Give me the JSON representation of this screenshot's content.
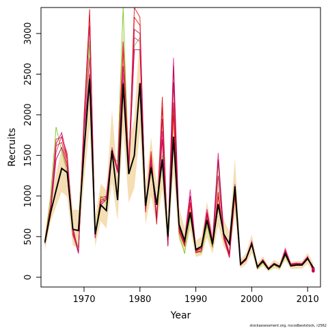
{
  "chart_data": {
    "type": "line",
    "xlabel": "Year",
    "ylabel": "Recruits",
    "credit": "stockassessment.org, nscodbeststock, r2562",
    "xlim": [
      1962.3,
      2012.3
    ],
    "ylim": [
      -120,
      3320
    ],
    "x_ticks": [
      1970,
      1980,
      1990,
      2000,
      2010
    ],
    "y_ticks": [
      0,
      500,
      1000,
      1500,
      2000,
      2500,
      3000
    ],
    "band_color": "#f5deb3",
    "estimate_color": "#000000",
    "years": [
      1963,
      1964,
      1965,
      1966,
      1967,
      1968,
      1969,
      1970,
      1971,
      1972,
      1973,
      1974,
      1975,
      1976,
      1977,
      1978,
      1979,
      1980,
      1981,
      1982,
      1983,
      1984,
      1985,
      1986,
      1987,
      1988,
      1989,
      1990,
      1991,
      1992,
      1993,
      1994,
      1995,
      1996,
      1997,
      1998,
      1999,
      2000,
      2001,
      2002,
      2003,
      2004,
      2005,
      2006,
      2007,
      2008,
      2009,
      2010,
      2011
    ],
    "estimate": [
      430,
      790,
      1070,
      1340,
      1290,
      590,
      575,
      1560,
      2440,
      530,
      890,
      820,
      1560,
      950,
      2380,
      1270,
      1500,
      2390,
      880,
      1350,
      890,
      1450,
      500,
      1730,
      650,
      450,
      800,
      340,
      380,
      700,
      410,
      900,
      530,
      410,
      1120,
      160,
      230,
      410,
      130,
      195,
      100,
      160,
      130,
      290,
      140,
      150,
      150,
      230,
      120
    ],
    "band_lower": [
      330,
      680,
      870,
      1050,
      990,
      390,
      360,
      1180,
      1860,
      380,
      690,
      600,
      1170,
      700,
      1800,
      920,
      1100,
      1800,
      650,
      1000,
      650,
      1080,
      360,
      1280,
      460,
      310,
      580,
      250,
      270,
      490,
      290,
      640,
      370,
      280,
      780,
      110,
      160,
      300,
      90,
      140,
      70,
      110,
      90,
      210,
      100,
      105,
      105,
      165,
      70
    ],
    "band_upper": [
      530,
      920,
      1280,
      1580,
      1570,
      830,
      830,
      2000,
      2950,
      730,
      1150,
      1070,
      2060,
      1240,
      3000,
      1650,
      1950,
      3000,
      1120,
      1720,
      1140,
      1870,
      660,
      2220,
      860,
      600,
      1040,
      450,
      500,
      930,
      550,
      1180,
      710,
      560,
      1470,
      220,
      300,
      530,
      175,
      260,
      140,
      215,
      175,
      380,
      190,
      200,
      200,
      300,
      175
    ],
    "series": [
      {
        "color": "#7cc521",
        "values": [
          440,
          1000,
          1850,
          1550,
          1290,
          560,
          360,
          1800,
          2900,
          540,
          1000,
          910,
          1500,
          1420,
          3320,
          1280,
          2850,
          2950,
          860,
          1400,
          720,
          1500,
          420,
          2100,
          520,
          290,
          760,
          330,
          300,
          640,
          360,
          1400,
          490,
          280,
          990,
          170,
          230,
          410,
          100,
          180,
          90,
          150,
          110,
          260,
          140,
          150,
          150,
          230,
          90
        ]
      },
      {
        "color": "#d7191c",
        "values": [
          450,
          860,
          1620,
          1660,
          1400,
          520,
          320,
          1950,
          3300,
          480,
          950,
          980,
          1550,
          1300,
          2900,
          1350,
          3320,
          3200,
          800,
          1500,
          650,
          2220,
          380,
          2150,
          560,
          380,
          900,
          300,
          320,
          720,
          380,
          1050,
          470,
          250,
          1050,
          160,
          220,
          440,
          110,
          200,
          100,
          160,
          120,
          290,
          150,
          160,
          160,
          250,
          110
        ]
      },
      {
        "color": "#e31a1c",
        "values": [
          460,
          880,
          1700,
          1720,
          1450,
          540,
          300,
          2000,
          3250,
          490,
          980,
          1000,
          1580,
          1350,
          2800,
          1400,
          3200,
          3100,
          820,
          1550,
          680,
          2100,
          390,
          2000,
          580,
          400,
          920,
          310,
          330,
          760,
          400,
          1000,
          480,
          240,
          1000,
          150,
          210,
          430,
          115,
          205,
          105,
          165,
          125,
          300,
          155,
          165,
          160,
          245,
          100
        ]
      },
      {
        "color": "#c2185b",
        "values": [
          420,
          820,
          1640,
          1780,
          1470,
          620,
          300,
          1920,
          3100,
          500,
          930,
          960,
          1540,
          1320,
          2600,
          1300,
          3050,
          3000,
          840,
          1450,
          700,
          1950,
          400,
          2400,
          600,
          420,
          1000,
          320,
          350,
          780,
          420,
          1250,
          500,
          260,
          1080,
          160,
          220,
          430,
          120,
          210,
          110,
          170,
          130,
          340,
          160,
          170,
          165,
          250,
          85
        ]
      },
      {
        "color": "#e7298a",
        "values": [
          410,
          780,
          1540,
          1740,
          1520,
          560,
          290,
          1870,
          2700,
          510,
          910,
          1000,
          1600,
          1280,
          2500,
          1350,
          2950,
          2900,
          900,
          1420,
          760,
          1800,
          420,
          2700,
          640,
          460,
          1080,
          350,
          370,
          840,
          450,
          1530,
          540,
          300,
          1150,
          170,
          240,
          440,
          130,
          220,
          115,
          175,
          140,
          350,
          165,
          175,
          170,
          255,
          75
        ]
      },
      {
        "color": "#b8004f",
        "values": [
          430,
          800,
          1450,
          1600,
          1350,
          600,
          310,
          1800,
          2500,
          520,
          890,
          960,
          1560,
          1300,
          2400,
          1280,
          2800,
          2800,
          880,
          1380,
          740,
          1700,
          400,
          2600,
          620,
          440,
          1000,
          330,
          360,
          800,
          430,
          1450,
          520,
          280,
          1120,
          160,
          230,
          420,
          125,
          215,
          110,
          170,
          135,
          320,
          160,
          170,
          165,
          250,
          80
        ]
      }
    ]
  }
}
